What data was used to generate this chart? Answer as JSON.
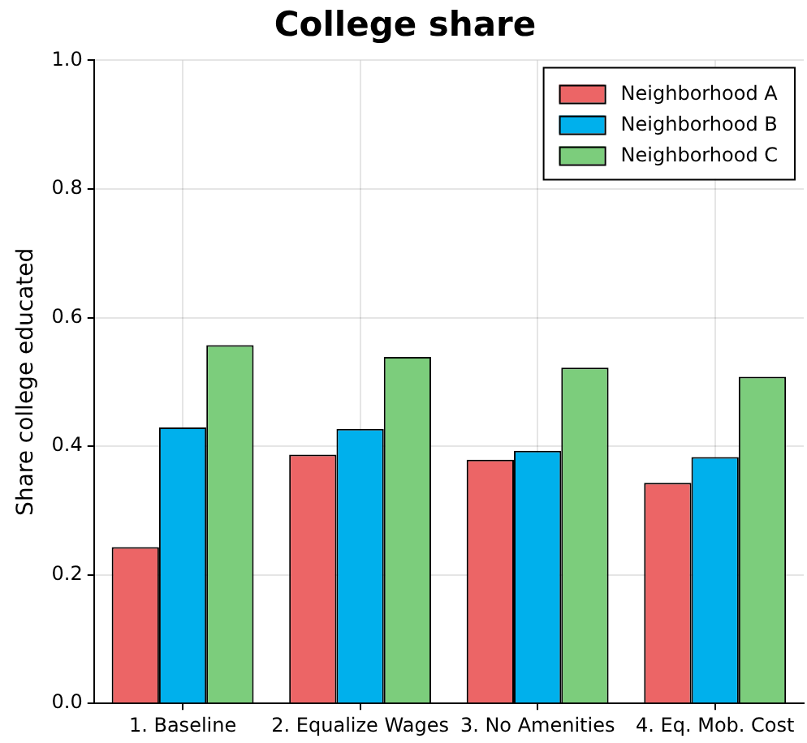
{
  "chart_data": {
    "type": "bar",
    "title": "College share",
    "ylabel": "Share college educated",
    "categories": [
      "1. Baseline",
      "2. Equalize Wages",
      "3. No Amenities",
      "4. Eq. Mob. Cost"
    ],
    "series": [
      {
        "name": "Neighborhood A",
        "color": "#ec6566",
        "values": [
          0.243,
          0.387,
          0.379,
          0.343
        ]
      },
      {
        "name": "Neighborhood B",
        "color": "#00b0ec",
        "values": [
          0.429,
          0.427,
          0.393,
          0.383
        ]
      },
      {
        "name": "Neighborhood C",
        "color": "#7ccd7c",
        "values": [
          0.557,
          0.539,
          0.522,
          0.508
        ]
      }
    ],
    "ylim": [
      0,
      1
    ],
    "yticks": [
      {
        "value": 0,
        "label": "0.0"
      },
      0.2,
      0.4,
      0.6,
      0.8,
      {
        "value": 1,
        "label": "1.0"
      }
    ],
    "grid": true,
    "legend": "top right"
  }
}
